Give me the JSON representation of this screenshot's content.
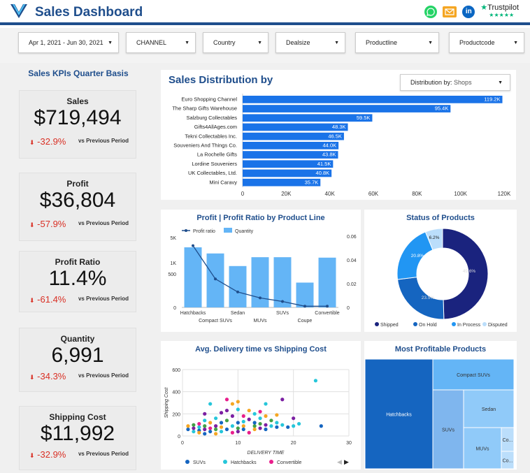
{
  "header": {
    "title": "Sales Dashboard",
    "trustpilot": "Trustpilot",
    "whatsapp_icon": "whatsapp-icon",
    "email_icon": "email-icon",
    "linkedin_icon": "linkedin-icon",
    "trustpilot_star": "★",
    "trustpilot_stars": "★★★★★"
  },
  "filters": [
    {
      "label": "Apr 1, 2021 - Jun 30, 2021"
    },
    {
      "label": "CHANNEL"
    },
    {
      "label": "Country"
    },
    {
      "label": "Dealsize"
    },
    {
      "label": "Productline"
    },
    {
      "label": "Productcode"
    }
  ],
  "kpi_title": "Sales KPIs Quarter Basis",
  "kpis": [
    {
      "label": "Sales",
      "value": "$719,494",
      "delta": "-32.9%",
      "compare": "vs Previous Period"
    },
    {
      "label": "Profit",
      "value": "$36,804",
      "delta": "-57.9%",
      "compare": "vs Previous Period"
    },
    {
      "label": "Profit Ratio",
      "value": "11.4%",
      "delta": "-61.4%",
      "compare": "vs Previous Period"
    },
    {
      "label": "Quantity",
      "value": "6,991",
      "delta": "-34.3%",
      "compare": "vs Previous Period"
    },
    {
      "label": "Shipping Cost",
      "value": "$11,992",
      "delta": "-32.9%",
      "compare": "vs Previous Period"
    }
  ],
  "sales_dist": {
    "title": "Sales Distribution by",
    "selector_prefix": "Distribution by:",
    "selector_value": "Shops"
  },
  "profit_panel": {
    "title": "Profit | Profit Ratio by Product Line"
  },
  "status_panel": {
    "title": "Status of Products"
  },
  "delivery_panel": {
    "title": "Avg. Delivery time vs Shipping Cost"
  },
  "tree_panel": {
    "title": "Most Profitable Products"
  },
  "colors": {
    "primary": "#1a73e8",
    "dark_blue": "#1f4e8c",
    "bar_light": "#64b5f6",
    "negative": "#d93025"
  },
  "chart_data": [
    {
      "type": "bar",
      "orientation": "horizontal",
      "categories": [
        "Euro Shopping Channel",
        "The Sharp Gifts Warehouse",
        "Salzburg Collectables",
        "Gifts4AllAges.com",
        "Tekni Collectables Inc.",
        "Souveniers And Things Co.",
        "La Rochelle Gifts",
        "Lordine Souveniers",
        "UK Collectables, Ltd.",
        "Mini Caravy"
      ],
      "values": [
        119200,
        95400,
        59500,
        48300,
        46500,
        44000,
        43800,
        41500,
        40800,
        35700
      ],
      "value_labels": [
        "119.2K",
        "95.4K",
        "59.5K",
        "48.3K",
        "46.5K",
        "44.0K",
        "43.8K",
        "41.5K",
        "40.8K",
        "35.7K"
      ],
      "xticks": [
        "0",
        "20K",
        "40K",
        "60K",
        "80K",
        "100K",
        "120K"
      ],
      "xlim": [
        0,
        120000
      ]
    },
    {
      "type": "bar",
      "categories": [
        "Hatchbacks",
        "Compact SUVs",
        "Sedan",
        "MUVs",
        "SUVs",
        "Coupe",
        "Convertible"
      ],
      "series": [
        {
          "name": "Quantity",
          "kind": "bar",
          "values": [
            1700,
            1420,
            850,
            1250,
            1250,
            370,
            1230
          ]
        },
        {
          "name": "Profit ratio",
          "kind": "line",
          "values": [
            0.052,
            0.024,
            0.013,
            0.008,
            0.005,
            0.001,
            0.001
          ]
        }
      ],
      "y_left_ticks": [
        "0",
        "500",
        "1K",
        "5K"
      ],
      "y_right_ticks": [
        "0",
        "0.02",
        "0.04",
        "0.06"
      ],
      "ylim_right": [
        0,
        0.06
      ]
    },
    {
      "type": "pie",
      "donut": true,
      "labels": [
        "Shipped",
        "On Hold",
        "In Process",
        "Disputed"
      ],
      "values": [
        49.6,
        23.5,
        20.8,
        6.2
      ],
      "value_labels": [
        "49.6%",
        "23.5%",
        "20.8%",
        "6.2%"
      ],
      "colors": [
        "#1a237e",
        "#1565c0",
        "#2196f3",
        "#bbdefb"
      ]
    },
    {
      "type": "scatter",
      "xlabel": "DELIVERY TIME",
      "ylabel": "Shipping Cost",
      "xlim": [
        0,
        30
      ],
      "ylim": [
        0,
        600
      ],
      "xticks": [
        "0",
        "10",
        "20",
        "30"
      ],
      "yticks": [
        "0",
        "200",
        "400",
        "600"
      ],
      "legend": [
        "SUVs",
        "Hatchbacks",
        "Convertible"
      ],
      "colors": [
        "#1565c0",
        "#26c6da",
        "#e91e8c",
        "#7b1fa2",
        "#f5a623",
        "#43a047"
      ],
      "points": [
        [
          1,
          60,
          0
        ],
        [
          1,
          90,
          4
        ],
        [
          2,
          40,
          1
        ],
        [
          2,
          70,
          3
        ],
        [
          2,
          100,
          5
        ],
        [
          3,
          50,
          0
        ],
        [
          3,
          80,
          1
        ],
        [
          3,
          110,
          2
        ],
        [
          3,
          30,
          4
        ],
        [
          4,
          60,
          3
        ],
        [
          4,
          90,
          5
        ],
        [
          4,
          140,
          1
        ],
        [
          4,
          200,
          3
        ],
        [
          4,
          20,
          0
        ],
        [
          5,
          290,
          1
        ],
        [
          5,
          70,
          2
        ],
        [
          5,
          120,
          4
        ],
        [
          5,
          40,
          0
        ],
        [
          6,
          90,
          3
        ],
        [
          6,
          160,
          1
        ],
        [
          6,
          60,
          5
        ],
        [
          6,
          20,
          4
        ],
        [
          7,
          210,
          3
        ],
        [
          7,
          120,
          0
        ],
        [
          7,
          80,
          4
        ],
        [
          7,
          40,
          1
        ],
        [
          8,
          230,
          3
        ],
        [
          8,
          330,
          2
        ],
        [
          8,
          140,
          5
        ],
        [
          8,
          60,
          0
        ],
        [
          9,
          90,
          1
        ],
        [
          9,
          290,
          4
        ],
        [
          9,
          180,
          3
        ],
        [
          9,
          30,
          2
        ],
        [
          10,
          240,
          1
        ],
        [
          10,
          310,
          4
        ],
        [
          10,
          120,
          0
        ],
        [
          10,
          70,
          5
        ],
        [
          10,
          40,
          3
        ],
        [
          11,
          180,
          2
        ],
        [
          11,
          90,
          4
        ],
        [
          11,
          130,
          1
        ],
        [
          11,
          60,
          0
        ],
        [
          12,
          230,
          4
        ],
        [
          12,
          150,
          3
        ],
        [
          12,
          30,
          2
        ],
        [
          13,
          200,
          1
        ],
        [
          13,
          90,
          5
        ],
        [
          13,
          120,
          0
        ],
        [
          13,
          60,
          4
        ],
        [
          14,
          160,
          1
        ],
        [
          14,
          220,
          2
        ],
        [
          14,
          70,
          3
        ],
        [
          14,
          110,
          5
        ],
        [
          15,
          290,
          1
        ],
        [
          15,
          180,
          4
        ],
        [
          15,
          60,
          0
        ],
        [
          15,
          100,
          3
        ],
        [
          16,
          90,
          1
        ],
        [
          16,
          140,
          5
        ],
        [
          17,
          190,
          4
        ],
        [
          17,
          80,
          0
        ],
        [
          17,
          120,
          1
        ],
        [
          18,
          100,
          1
        ],
        [
          18,
          330,
          3
        ],
        [
          19,
          80,
          0
        ],
        [
          20,
          90,
          1
        ],
        [
          20,
          160,
          3
        ],
        [
          21,
          110,
          1
        ],
        [
          24,
          500,
          1
        ],
        [
          25,
          90,
          0
        ]
      ]
    },
    {
      "type": "treemap",
      "labels": [
        "Hatchbacks",
        "Compact SUVs",
        "Sedan",
        "SUVs",
        "MUVs",
        "Co...",
        "Co..."
      ]
    }
  ]
}
